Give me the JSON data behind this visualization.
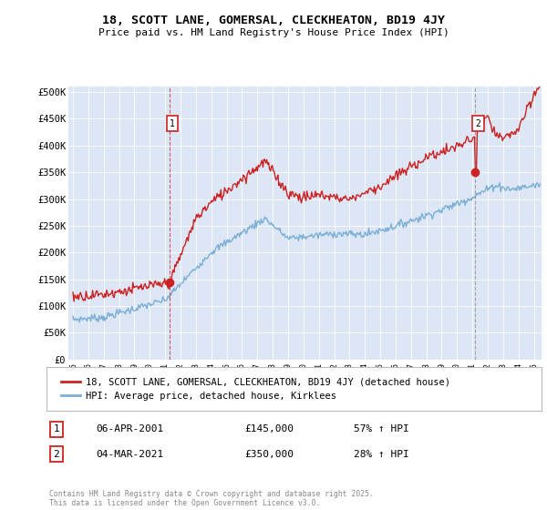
{
  "title": "18, SCOTT LANE, GOMERSAL, CLECKHEATON, BD19 4JY",
  "subtitle": "Price paid vs. HM Land Registry's House Price Index (HPI)",
  "hpi_label": "HPI: Average price, detached house, Kirklees",
  "property_label": "18, SCOTT LANE, GOMERSAL, CLECKHEATON, BD19 4JY (detached house)",
  "hpi_color": "#7bafd4",
  "property_color": "#cc2222",
  "annotation1_date": "06-APR-2001",
  "annotation1_price": "£145,000",
  "annotation1_hpi": "57% ↑ HPI",
  "annotation1_year": 2001.27,
  "annotation1_value": 145000,
  "annotation2_date": "04-MAR-2021",
  "annotation2_price": "£350,000",
  "annotation2_hpi": "28% ↑ HPI",
  "annotation2_year": 2021.17,
  "annotation2_value": 350000,
  "ylim": [
    0,
    510000
  ],
  "xlim_start": 1994.7,
  "xlim_end": 2025.5,
  "footer": "Contains HM Land Registry data © Crown copyright and database right 2025.\nThis data is licensed under the Open Government Licence v3.0.",
  "plot_bg_color": "#dce6f5"
}
